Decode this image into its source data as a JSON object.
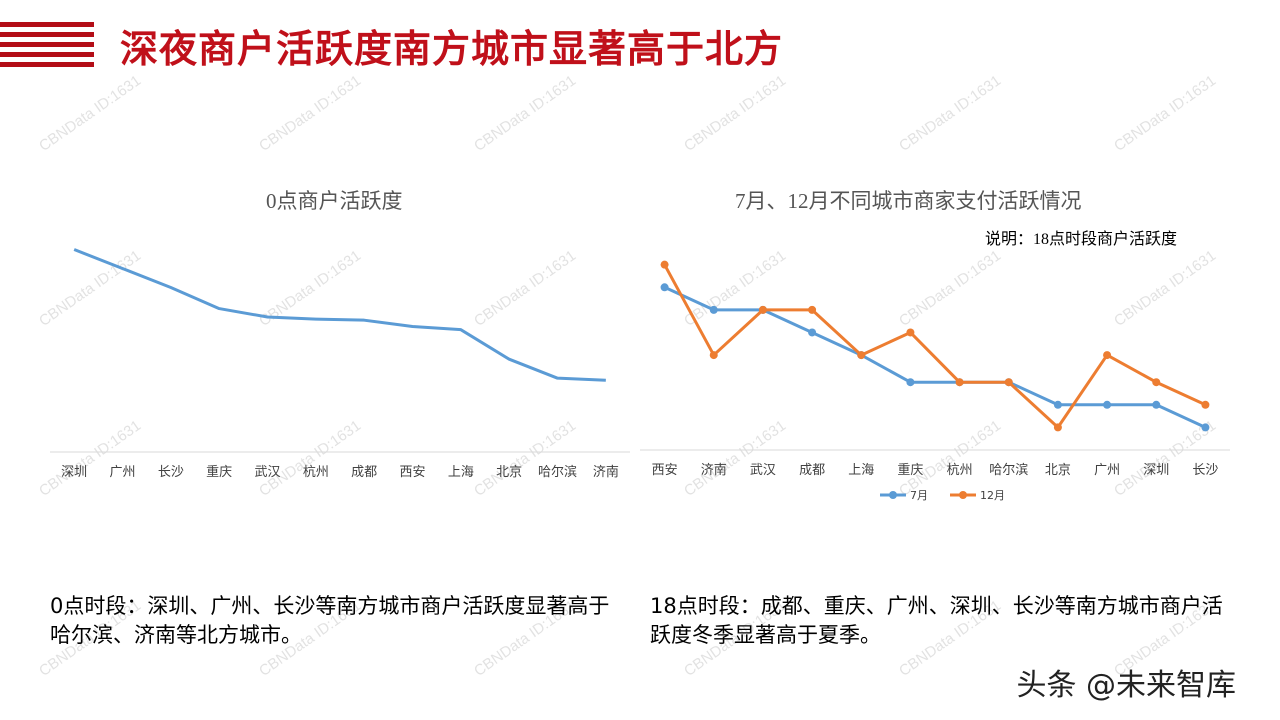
{
  "page_title": "深夜商户活跃度南方城市显著高于北方",
  "watermark": "CBNData ID:1631",
  "footer_credit": "头条 @未来智库",
  "left_description": "0点时段：深圳、广州、长沙等南方城市商户活跃度显著高于哈尔滨、济南等北方城市。",
  "right_description": "18点时段：成都、重庆、广州、深圳、长沙等南方城市商户活跃度冬季显著高于夏季。",
  "colors": {
    "brand_red": "#c0101a",
    "series_blue": "#5b9bd5",
    "series_orange": "#ed7d31",
    "axis": "#d9d9d9"
  },
  "chart_data": [
    {
      "type": "line",
      "title": "0点商户活跃度",
      "categories": [
        "深圳",
        "广州",
        "长沙",
        "重庆",
        "武汉",
        "杭州",
        "成都",
        "西安",
        "上海",
        "北京",
        "哈尔滨",
        "济南"
      ],
      "series": [
        {
          "values": [
            9.6,
            8.7,
            7.8,
            6.8,
            6.4,
            6.3,
            6.25,
            5.95,
            5.8,
            4.4,
            3.5,
            3.4
          ]
        }
      ],
      "ylim": [
        0,
        11
      ],
      "grid": false
    },
    {
      "type": "line",
      "title": "7月、12月不同城市商家支付活跃情况",
      "note": "说明：18点时段商户活跃度",
      "categories": [
        "西安",
        "济南",
        "武汉",
        "成都",
        "上海",
        "重庆",
        "杭州",
        "哈尔滨",
        "北京",
        "广州",
        "深圳",
        "长沙"
      ],
      "series": [
        {
          "name": "7月",
          "values": [
            7.2,
            6.2,
            6.2,
            5.2,
            4.2,
            3.0,
            3.0,
            3.0,
            2.0,
            2.0,
            2.0,
            1.0
          ]
        },
        {
          "name": "12月",
          "values": [
            8.2,
            4.2,
            6.2,
            6.2,
            4.2,
            5.2,
            3.0,
            3.0,
            1.0,
            4.2,
            3.0,
            2.0
          ]
        }
      ],
      "ylim": [
        0,
        10
      ],
      "grid": false,
      "legend_position": "bottom"
    }
  ]
}
